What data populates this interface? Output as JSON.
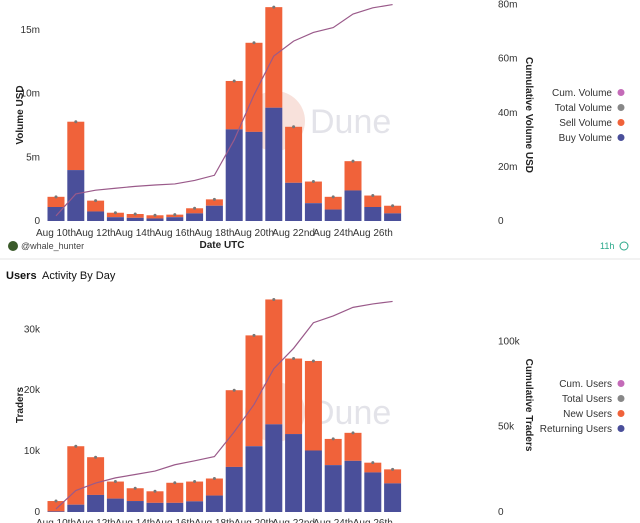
{
  "colors": {
    "buy": "#4a4f9a",
    "sell": "#f0623a",
    "cum": "#9a5a8a",
    "total": "#888888",
    "cum_dot": "#c46bb8",
    "badge": "#2aa88a"
  },
  "top": {
    "footer": {
      "author": "@whale_hunter",
      "age": "11h"
    },
    "chart_data": {
      "type": "bar",
      "stacked": true,
      "xlabel": "Date UTC",
      "ylabel": "Volume USD",
      "y2label": "Cumulative Volume USD",
      "ylim": [
        0,
        17
      ],
      "y2lim": [
        0,
        80
      ],
      "yticks": [
        "0",
        "5m",
        "10m",
        "15m"
      ],
      "y2ticks": [
        "0",
        "20m",
        "40m",
        "60m",
        "80m"
      ],
      "xtick_labels": [
        "Aug 10th",
        "Aug 12th",
        "Aug 14th",
        "Aug 16th",
        "Aug 18th",
        "Aug 20th",
        "Aug 22nd",
        "Aug 24th",
        "Aug 26th"
      ],
      "categories": [
        "Aug 10",
        "Aug 11",
        "Aug 12",
        "Aug 13",
        "Aug 14",
        "Aug 15",
        "Aug 16",
        "Aug 17",
        "Aug 18",
        "Aug 19",
        "Aug 20",
        "Aug 21",
        "Aug 22",
        "Aug 23",
        "Aug 24",
        "Aug 25",
        "Aug 26",
        "Aug 27"
      ],
      "legend": [
        "Cum. Volume",
        "Total Volume",
        "Sell Volume",
        "Buy Volume"
      ],
      "legend_position": "right",
      "series": [
        {
          "name": "Buy Volume",
          "unit": "m USD",
          "values": [
            1.1,
            4.0,
            0.75,
            0.3,
            0.25,
            0.2,
            0.3,
            0.6,
            1.2,
            7.2,
            7.0,
            8.9,
            3.0,
            1.4,
            0.9,
            2.4,
            1.1,
            0.6
          ]
        },
        {
          "name": "Sell Volume",
          "unit": "m USD",
          "values": [
            0.8,
            3.8,
            0.85,
            0.35,
            0.3,
            0.25,
            0.2,
            0.4,
            0.5,
            3.8,
            7.0,
            7.9,
            4.4,
            1.7,
            1.0,
            2.3,
            0.9,
            0.6
          ]
        },
        {
          "name": "Total Volume",
          "unit": "m USD",
          "values": [
            1.9,
            7.8,
            1.6,
            0.65,
            0.55,
            0.45,
            0.5,
            1.0,
            1.7,
            11.0,
            14.0,
            16.8,
            7.4,
            3.1,
            1.9,
            4.7,
            2.0,
            1.2
          ]
        },
        {
          "name": "Cum. Volume",
          "unit": "m USD",
          "axis": "right",
          "values": [
            1.9,
            10.0,
            11.4,
            12.1,
            12.8,
            13.3,
            13.7,
            15.0,
            16.9,
            30.0,
            46.6,
            61.0,
            66.5,
            69.7,
            71.5,
            76.5,
            78.8,
            80.0
          ]
        }
      ],
      "watermark": "Dune"
    }
  },
  "bottom": {
    "title": "Users",
    "subtitle": "Activity By Day",
    "chart_data": {
      "type": "bar",
      "stacked": true,
      "ylabel": "Traders",
      "y2label": "Cumulative Traders",
      "ylim": [
        0,
        35
      ],
      "y2lim": [
        0,
        125
      ],
      "yticks": [
        "0",
        "10k",
        "20k",
        "30k"
      ],
      "y2ticks": [
        "0",
        "50k",
        "100k"
      ],
      "xtick_labels": [
        "Aug 10th",
        "Aug 12th",
        "Aug 14th",
        "Aug 16th",
        "Aug 18th",
        "Aug 20th",
        "Aug 22nd",
        "Aug 24th",
        "Aug 26th"
      ],
      "categories": [
        "Aug 10",
        "Aug 11",
        "Aug 12",
        "Aug 13",
        "Aug 14",
        "Aug 15",
        "Aug 16",
        "Aug 17",
        "Aug 18",
        "Aug 19",
        "Aug 20",
        "Aug 21",
        "Aug 22",
        "Aug 23",
        "Aug 24",
        "Aug 25",
        "Aug 26",
        "Aug 27"
      ],
      "legend": [
        "Cum. Users",
        "Total Users",
        "New Users",
        "Returning Users"
      ],
      "legend_position": "right",
      "series": [
        {
          "name": "Returning Users",
          "unit": "k",
          "values": [
            0.1,
            1.2,
            2.8,
            2.2,
            1.8,
            1.5,
            1.5,
            1.75,
            2.7,
            7.4,
            10.8,
            14.4,
            12.8,
            10.1,
            7.7,
            8.4,
            6.5,
            4.7
          ]
        },
        {
          "name": "New Users",
          "unit": "k",
          "values": [
            1.7,
            9.6,
            6.2,
            2.8,
            2.1,
            1.9,
            3.3,
            3.25,
            2.8,
            12.6,
            18.2,
            20.5,
            12.4,
            14.7,
            4.3,
            4.6,
            1.6,
            2.3
          ]
        },
        {
          "name": "Total Users",
          "unit": "k",
          "values": [
            1.8,
            10.8,
            9.0,
            5.0,
            3.9,
            3.4,
            4.8,
            5.0,
            5.5,
            20.0,
            29.0,
            34.9,
            25.2,
            24.8,
            12.0,
            13.0,
            8.1,
            7.0
          ]
        },
        {
          "name": "Cum. Users",
          "unit": "k",
          "axis": "right",
          "values": [
            1.8,
            12.6,
            17.0,
            20.0,
            22.0,
            24.0,
            27.7,
            30.0,
            32.5,
            47.0,
            63.0,
            84.0,
            96.0,
            111.0,
            115.0,
            120.0,
            122.0,
            123.5
          ]
        }
      ],
      "watermark": "Dune"
    }
  }
}
